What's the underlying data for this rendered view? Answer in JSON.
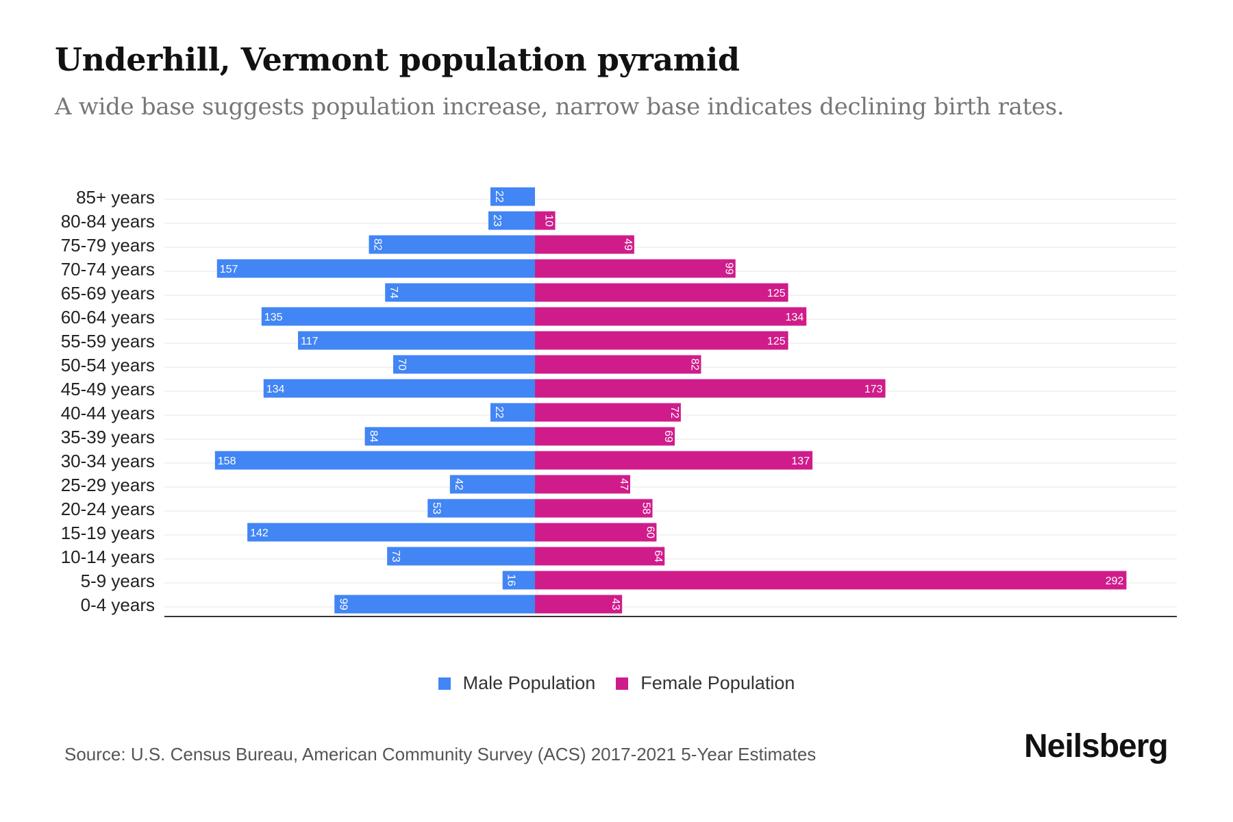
{
  "title": "Underhill, Vermont population pyramid",
  "subtitle": "A wide base suggests population increase, narrow base indicates declining birth rates.",
  "source": "Source: U.S. Census Bureau, American Community Survey (ACS) 2017-2021 5-Year Estimates",
  "logo": "Neilsberg",
  "colors": {
    "male": "#4285f4",
    "female": "#d01c8b"
  },
  "chart_data": {
    "type": "bar",
    "orientation": "horizontal-pyramid",
    "title": "Underhill, Vermont population pyramid",
    "categories": [
      "85+ years",
      "80-84 years",
      "75-79 years",
      "70-74 years",
      "65-69 years",
      "60-64 years",
      "55-59 years",
      "50-54 years",
      "45-49 years",
      "40-44 years",
      "35-39 years",
      "30-34 years",
      "25-29 years",
      "20-24 years",
      "15-19 years",
      "10-14 years",
      "5-9 years",
      "0-4 years"
    ],
    "series": [
      {
        "name": "Male Population",
        "values": [
          22,
          23,
          82,
          157,
          74,
          135,
          117,
          70,
          134,
          22,
          84,
          158,
          42,
          53,
          142,
          73,
          16,
          99
        ]
      },
      {
        "name": "Female Population",
        "values": [
          0,
          10,
          49,
          99,
          125,
          134,
          125,
          82,
          173,
          72,
          69,
          137,
          47,
          58,
          60,
          64,
          292,
          43
        ]
      }
    ],
    "legend": "bottom-center",
    "grid": true
  }
}
